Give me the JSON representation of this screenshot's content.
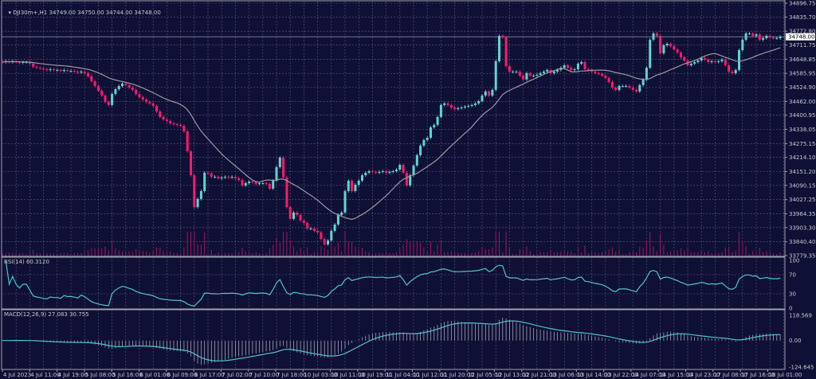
{
  "header": {
    "symbol": "DJI30m+,H1",
    "ohlc": "34749.00 34750.00 34744.00 34748.00"
  },
  "rsi_label": "RSI(14) 60.3120",
  "macd_label": "MACD(12,26,9) 27.083 30.755",
  "colors": {
    "background": "#0f1035",
    "bull": "#5fd6d0",
    "bear": "#ff1a6b",
    "grid": "#5a5c78",
    "ma": "#9a9aa4",
    "indicator": "#4fc6c8",
    "axis": "#a0a0b0"
  },
  "chart_data": [
    {
      "type": "candlestick",
      "timeframe": "H1",
      "ylim": [
        33779.35,
        34896.75
      ],
      "y_ticks": [
        "34896.75",
        "34835.70",
        "34772.80",
        "34711.75",
        "34648.85",
        "34585.95",
        "34524.90",
        "34462.00",
        "34400.95",
        "34338.05",
        "34275.15",
        "34214.10",
        "34151.20",
        "34090.15",
        "34027.25",
        "33964.35",
        "33903.30",
        "33840.40",
        "33779.35"
      ],
      "current_price": "34748.00",
      "x_ticks": [
        "4 Jul 2023",
        "4 Jul 11:00",
        "4 Jul 19:00",
        "5 Jul 08:00",
        "5 Jul 16:00",
        "6 Jul 01:00",
        "6 Jul 09:00",
        "6 Jul 17:00",
        "7 Jul 02:00",
        "7 Jul 10:00",
        "7 Jul 18:00",
        "10 Jul 03:00",
        "10 Jul 11:00",
        "10 Jul 19:00",
        "11 Jul 04:00",
        "11 Jul 12:00",
        "11 Jul 20:00",
        "12 Jul 05:00",
        "12 Jul 13:00",
        "12 Jul 21:00",
        "13 Jul 06:00",
        "13 Jul 14:00",
        "13 Jul 22:00",
        "14 Jul 07:00",
        "14 Jul 15:00",
        "14 Jul 23:00",
        "17 Jul 08:00",
        "17 Jul 16:00",
        "18 Jul 01:00"
      ],
      "first_open": 34638,
      "closes": [
        34636,
        34640,
        34636,
        34640,
        34636,
        34633,
        34636,
        34636,
        34629,
        34615,
        34611,
        34608,
        34604,
        34601,
        34604,
        34601,
        34601,
        34597,
        34601,
        34597,
        34597,
        34594,
        34590,
        34594,
        34587,
        34573,
        34551,
        34530,
        34509,
        34488,
        34460,
        34446,
        34495,
        34516,
        34530,
        34541,
        34534,
        34523,
        34513,
        34495,
        34481,
        34470,
        34460,
        34453,
        34442,
        34417,
        34393,
        34382,
        34375,
        34365,
        34361,
        34358,
        34354,
        34329,
        34241,
        34135,
        33994,
        34030,
        34065,
        34146,
        34143,
        34128,
        34128,
        34121,
        34125,
        34128,
        34125,
        34128,
        34121,
        34114,
        34090,
        34100,
        34107,
        34104,
        34097,
        34100,
        34100,
        34097,
        34076,
        34111,
        34171,
        34213,
        34125,
        33994,
        33942,
        33970,
        33959,
        33935,
        33924,
        33899,
        33899,
        33889,
        33882,
        33853,
        33829,
        33846,
        33889,
        33917,
        33959,
        33970,
        34065,
        34111,
        34065,
        34093,
        34111,
        34135,
        34146,
        34153,
        34150,
        34146,
        34150,
        34153,
        34146,
        34150,
        34153,
        34160,
        34181,
        34146,
        34090,
        34135,
        34178,
        34224,
        34266,
        34291,
        34301,
        34347,
        34358,
        34393,
        34446,
        34453,
        34446,
        34435,
        34428,
        34432,
        34435,
        34439,
        34442,
        34446,
        34453,
        34463,
        34488,
        34506,
        34488,
        34513,
        34640,
        34752,
        34745,
        34618,
        34594,
        34594,
        34594,
        34576,
        34559,
        34587,
        34576,
        34576,
        34580,
        34587,
        34594,
        34601,
        34587,
        34594,
        34601,
        34611,
        34622,
        34611,
        34601,
        34604,
        34629,
        34636,
        34604,
        34601,
        34594,
        34587,
        34583,
        34576,
        34566,
        34548,
        34523,
        34513,
        34530,
        34530,
        34530,
        34523,
        34513,
        34506,
        34534,
        34559,
        34611,
        34735,
        34763,
        34752,
        34675,
        34710,
        34717,
        34707,
        34692,
        34678,
        34657,
        34643,
        34622,
        34629,
        34636,
        34643,
        34654,
        34647,
        34636,
        34640,
        34636,
        34640,
        34647,
        34622,
        34594,
        34587,
        34601,
        34689,
        34735,
        34763,
        34763,
        34752,
        34759,
        34735,
        34742,
        34752,
        34745,
        34742,
        34742,
        34748
      ]
    },
    {
      "type": "line",
      "name": "RSI(14)",
      "ylim": [
        0,
        100
      ],
      "y_ticks": [
        "100",
        "70",
        "30",
        "0"
      ],
      "value": 60.312
    },
    {
      "type": "bar+line",
      "name": "MACD(12,26,9)",
      "ylim": [
        -124.645,
        118.569
      ],
      "y_ticks": [
        "118.569",
        "0.00",
        "-124.645"
      ],
      "main": 27.083,
      "signal": 30.755
    }
  ]
}
